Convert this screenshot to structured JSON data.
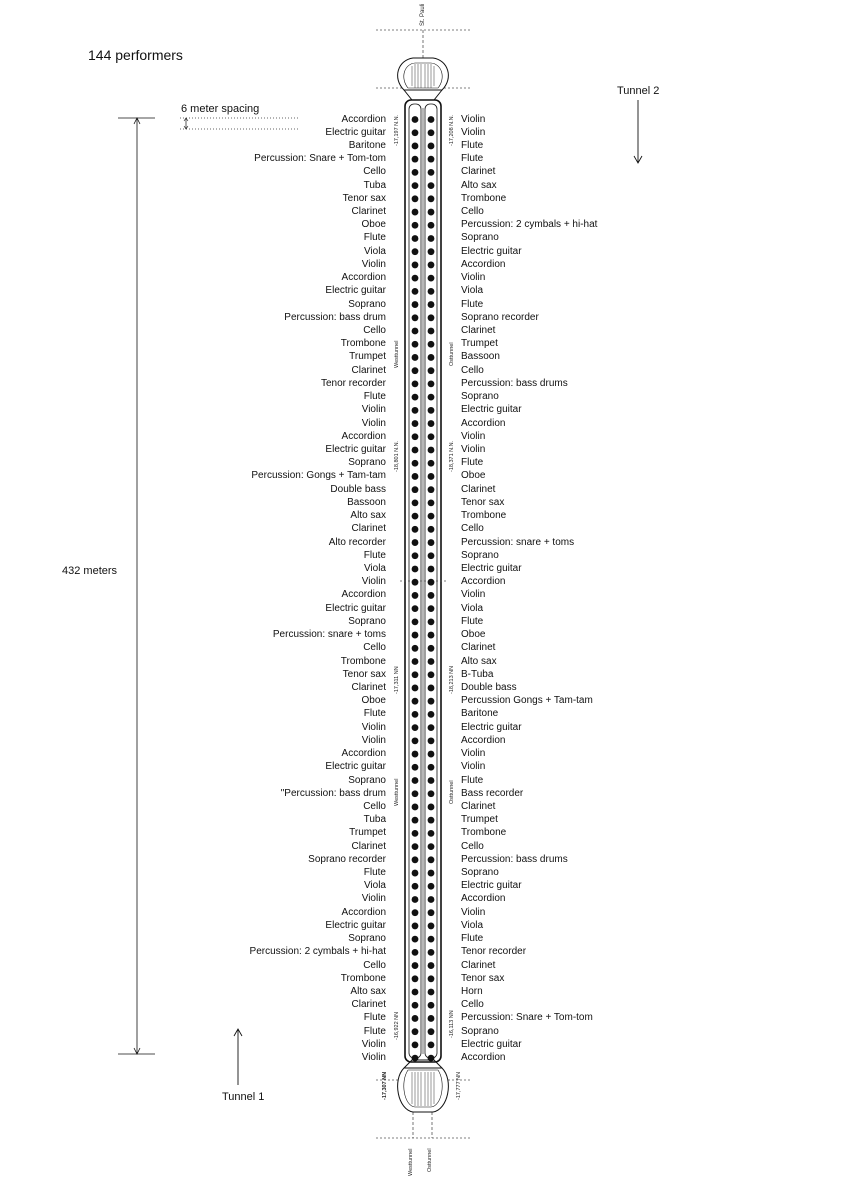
{
  "title": "144 performers",
  "spacing_label": "6 meter spacing",
  "length_label": "432 meters",
  "tunnel_top_label": "Tunnel 2",
  "tunnel_bottom_label": "Tunnel 1",
  "station_top": "St. Pauli",
  "station_bottom_left": "Westtunnel",
  "station_bottom_right": "Osttunnel",
  "tunnel_names": {
    "west_upper": "Westtunnel",
    "east_upper": "Osttunnel",
    "west_lower": "Westtunnel",
    "east_lower": "Osttunnel"
  },
  "elevations": {
    "left_1": "-17,197 N.N.",
    "right_1": "-17,208 N.N.",
    "left_2": "-18,801 N.N.",
    "right_2": "-18,371 N.N.",
    "left_3": "-17,311 NN",
    "right_3": "-18,213 NN",
    "left_4": "-16,922 NN",
    "right_4": "-16,113 NN",
    "bottom_left": "-17,307 NN",
    "bottom_right": "-17,777 NN"
  },
  "west_performers": [
    "Accordion",
    "Electric guitar",
    "Baritone",
    "Percussion: Snare + Tom-tom",
    "Cello",
    "Tuba",
    "Tenor sax",
    "Clarinet",
    "Oboe",
    "Flute",
    "Viola",
    "Violin",
    "Accordion",
    "Electric guitar",
    "Soprano",
    "Percussion: bass drum",
    "Cello",
    "Trombone",
    "Trumpet",
    "Clarinet",
    "Tenor recorder",
    "Flute",
    "Violin",
    "Violin",
    "Accordion",
    "Electric guitar",
    "Soprano",
    "Percussion: Gongs + Tam-tam",
    "Double bass",
    "Bassoon",
    "Alto sax",
    "Clarinet",
    "Alto recorder",
    "Flute",
    "Viola",
    "Violin",
    "Accordion",
    "Electric guitar",
    "Soprano",
    "Percussion: snare + toms",
    "Cello",
    "Trombone",
    "Tenor sax",
    "Clarinet",
    "Oboe",
    "Flute",
    "Violin",
    "Violin",
    "Accordion",
    "Electric guitar",
    "Soprano",
    "\"Percussion: bass drum",
    "Cello",
    "Tuba",
    "Trumpet",
    "Clarinet",
    "Soprano recorder",
    "Flute",
    "Viola",
    "Violin",
    "Accordion",
    "Electric guitar",
    "Soprano",
    "Percussion: 2 cymbals + hi-hat",
    "Cello",
    "Trombone",
    "Alto sax",
    "Clarinet",
    "Flute",
    "Flute",
    "Violin",
    "Violin"
  ],
  "east_performers": [
    "Violin",
    "Violin",
    "Flute",
    "Flute",
    "Clarinet",
    "Alto sax",
    "Trombone",
    "Cello",
    "Percussion: 2 cymbals + hi-hat",
    "Soprano",
    "Electric guitar",
    "Accordion",
    "Violin",
    "Viola",
    "Flute",
    "Soprano recorder",
    "Clarinet",
    "Trumpet",
    "Bassoon",
    "Cello",
    "Percussion: bass drums",
    "Soprano",
    "Electric guitar",
    "Accordion",
    "Violin",
    "Violin",
    "Flute",
    "Oboe",
    "Clarinet",
    "Tenor sax",
    "Trombone",
    "Cello",
    "Percussion: snare + toms",
    "Soprano",
    "Electric guitar",
    "Accordion",
    "Violin",
    "Viola",
    "Flute",
    "Oboe",
    "Clarinet",
    "Alto sax",
    "B-Tuba",
    "Double bass",
    "Percussion Gongs + Tam-tam",
    "Baritone",
    "Electric guitar",
    "Accordion",
    "Violin",
    "Violin",
    "Flute",
    "Bass recorder",
    "Clarinet",
    "Trumpet",
    "Trombone",
    "Cello",
    "Percussion: bass drums",
    "Soprano",
    "Electric guitar",
    "Accordion",
    "Violin",
    "Viola",
    "Flute",
    "Tenor recorder",
    "Clarinet",
    "Tenor sax",
    "Horn",
    "Cello",
    "Percussion: Snare + Tom-tom",
    "Soprano",
    "Electric guitar",
    "Accordion"
  ]
}
